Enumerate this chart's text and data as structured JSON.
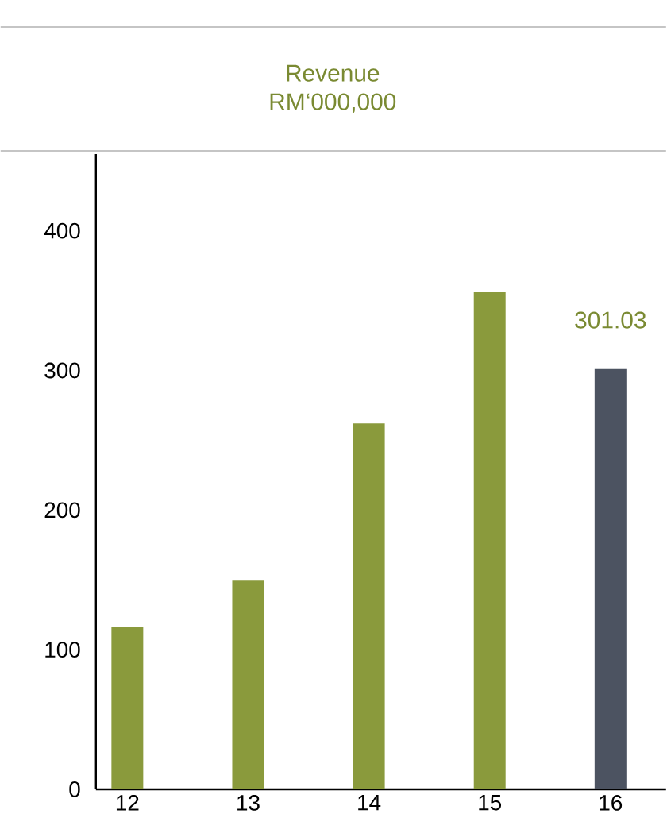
{
  "chart_data": {
    "type": "bar",
    "title": "Revenue",
    "subtitle": "RM‘000,000",
    "categories": [
      "12",
      "13",
      "14",
      "15",
      "16"
    ],
    "values": [
      116,
      150,
      262,
      356,
      301.03
    ],
    "colors": [
      "#8a9a3c",
      "#8a9a3c",
      "#8a9a3c",
      "#8a9a3c",
      "#4c5361"
    ],
    "value_labels": [
      null,
      null,
      null,
      null,
      "301.03"
    ],
    "ylim": [
      0,
      455
    ],
    "yticks": [
      0,
      100,
      200,
      300,
      400
    ],
    "grid": false
  }
}
